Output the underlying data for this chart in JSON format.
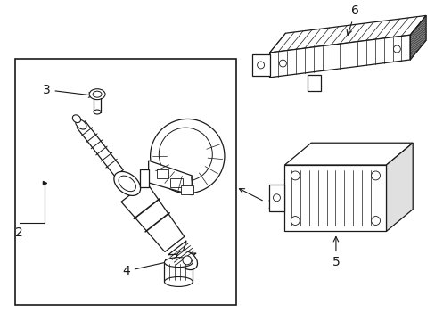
{
  "bg_color": "#ffffff",
  "line_color": "#1a1a1a",
  "fig_width": 4.89,
  "fig_height": 3.6,
  "dpi": 100,
  "label_fontsize": 10
}
